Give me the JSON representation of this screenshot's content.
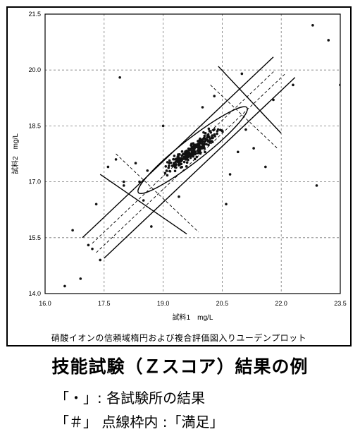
{
  "chart_data": {
    "type": "scatter",
    "title": "",
    "caption": "硝酸イオンの信頼域楕円および複合評価図入りユーデンプロット",
    "xlabel": "試料1　mg/L",
    "ylabel": "試料2　mg/L",
    "xlim": [
      16.0,
      23.5
    ],
    "ylim": [
      14.0,
      21.5
    ],
    "xticks": [
      "16.0",
      "17.5",
      "19.0",
      "20.5",
      "22.0",
      "23.5"
    ],
    "yticks": [
      "14.0",
      "15.5",
      "17.0",
      "18.5",
      "20.0",
      "21.5"
    ],
    "grid": true,
    "center": [
      19.75,
      17.85
    ],
    "ellipse": {
      "semi_major": 1.75,
      "semi_minor": 0.3,
      "angle_deg": 38
    },
    "outliers": [
      [
        16.5,
        14.2
      ],
      [
        16.7,
        15.7
      ],
      [
        16.9,
        14.4
      ],
      [
        17.1,
        15.3
      ],
      [
        17.2,
        15.2
      ],
      [
        17.3,
        16.4
      ],
      [
        17.4,
        14.9
      ],
      [
        17.6,
        17.4
      ],
      [
        17.8,
        17.6
      ],
      [
        18.0,
        17.0
      ],
      [
        17.9,
        19.8
      ],
      [
        18.3,
        17.5
      ],
      [
        18.4,
        17.0
      ],
      [
        18.6,
        17.3
      ],
      [
        18.5,
        16.5
      ],
      [
        18.7,
        15.8
      ],
      [
        19.0,
        18.5
      ],
      [
        18.0,
        16.9
      ],
      [
        20.7,
        17.2
      ],
      [
        20.9,
        17.8
      ],
      [
        21.1,
        18.4
      ],
      [
        21.3,
        17.9
      ],
      [
        21.6,
        17.4
      ],
      [
        21.8,
        19.2
      ],
      [
        22.3,
        19.6
      ],
      [
        22.8,
        21.2
      ],
      [
        23.2,
        20.8
      ],
      [
        23.5,
        19.6
      ],
      [
        22.9,
        16.9
      ],
      [
        20.3,
        19.3
      ],
      [
        21.0,
        19.9
      ],
      [
        20.6,
        16.4
      ],
      [
        19.4,
        16.6
      ],
      [
        20.0,
        19.0
      ]
    ],
    "cluster_seed": 7,
    "cluster_count": 240
  },
  "heading": "技能試験（Ｚスコア）結果の例",
  "legend": [
    "「・」: 各試験所の結果",
    "「＃」 点線枠内 :「満足」"
  ]
}
